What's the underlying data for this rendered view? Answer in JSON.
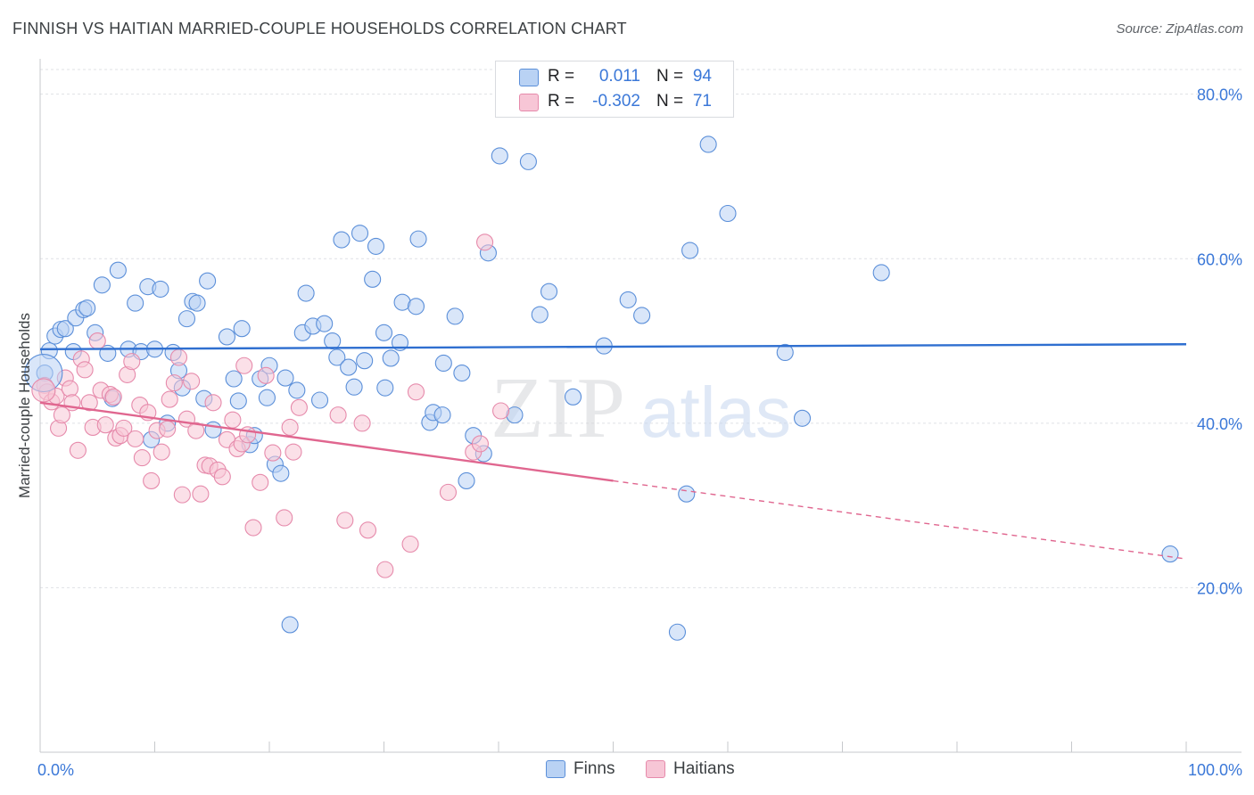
{
  "chart_data": {
    "type": "scatter",
    "title": "FINNISH VS HAITIAN MARRIED-COUPLE HOUSEHOLDS CORRELATION CHART",
    "source": "Source: ZipAtlas.com",
    "xlabel": "",
    "ylabel": "Married-couple Households",
    "xlim": [
      0,
      100
    ],
    "ylim": [
      0,
      83
    ],
    "x_tick_labels": [
      "0.0%",
      "100.0%"
    ],
    "y_ticks": [
      {
        "value": 20,
        "label": "20.0%"
      },
      {
        "value": 40,
        "label": "40.0%"
      },
      {
        "value": 60,
        "label": "60.0%"
      },
      {
        "value": 80,
        "label": "80.0%"
      }
    ],
    "watermark": "ZIPatlas",
    "legend": {
      "position": "top-center",
      "rows": [
        {
          "r_label": "R =",
          "r_value": "0.011",
          "n_label": "N =",
          "n_value": "94"
        },
        {
          "r_label": "R =",
          "r_value": "-0.302",
          "n_label": "N =",
          "n_value": "71"
        }
      ]
    },
    "series": [
      {
        "name": "Finns",
        "color": "#5b8fd9",
        "fill": "#b9d2f4",
        "trend": {
          "x0": 0,
          "y0": 49.0,
          "x1": 100,
          "y1": 49.6,
          "style": "solid",
          "color": "#2f6fd0"
        },
        "points": [
          [
            0.4,
            46.1
          ],
          [
            0.8,
            48.8
          ],
          [
            1.3,
            50.6
          ],
          [
            1.8,
            51.4
          ],
          [
            2.2,
            51.5
          ],
          [
            2.9,
            48.7
          ],
          [
            3.1,
            52.8
          ],
          [
            3.8,
            53.8
          ],
          [
            4.1,
            54.0
          ],
          [
            4.8,
            51.0
          ],
          [
            5.4,
            56.8
          ],
          [
            5.9,
            48.5
          ],
          [
            6.3,
            43.0
          ],
          [
            6.8,
            58.6
          ],
          [
            7.7,
            49.0
          ],
          [
            8.3,
            54.6
          ],
          [
            8.8,
            48.7
          ],
          [
            9.4,
            56.6
          ],
          [
            9.7,
            38.0
          ],
          [
            10.5,
            56.3
          ],
          [
            11.1,
            40.0
          ],
          [
            11.6,
            48.6
          ],
          [
            12.1,
            46.4
          ],
          [
            12.4,
            44.3
          ],
          [
            12.8,
            52.7
          ],
          [
            13.3,
            54.8
          ],
          [
            13.7,
            54.6
          ],
          [
            14.3,
            43.0
          ],
          [
            14.6,
            57.3
          ],
          [
            15.1,
            39.2
          ],
          [
            16.3,
            50.5
          ],
          [
            16.9,
            45.4
          ],
          [
            17.3,
            42.7
          ],
          [
            17.6,
            51.5
          ],
          [
            18.3,
            37.4
          ],
          [
            18.7,
            38.5
          ],
          [
            19.2,
            45.4
          ],
          [
            19.8,
            43.1
          ],
          [
            20.5,
            35.0
          ],
          [
            21.0,
            33.9
          ],
          [
            21.4,
            45.5
          ],
          [
            21.8,
            15.5
          ],
          [
            22.4,
            44.0
          ],
          [
            22.9,
            51.0
          ],
          [
            23.2,
            55.8
          ],
          [
            23.8,
            51.8
          ],
          [
            24.4,
            42.8
          ],
          [
            24.8,
            52.1
          ],
          [
            25.5,
            50.0
          ],
          [
            25.9,
            48.0
          ],
          [
            26.3,
            62.3
          ],
          [
            26.9,
            46.8
          ],
          [
            27.4,
            44.4
          ],
          [
            27.9,
            63.1
          ],
          [
            28.3,
            47.6
          ],
          [
            29.0,
            57.5
          ],
          [
            29.3,
            61.5
          ],
          [
            30.1,
            44.3
          ],
          [
            30.6,
            47.9
          ],
          [
            31.4,
            49.8
          ],
          [
            31.6,
            54.7
          ],
          [
            32.8,
            54.2
          ],
          [
            33.0,
            62.4
          ],
          [
            34.0,
            40.1
          ],
          [
            34.3,
            41.3
          ],
          [
            35.1,
            41.0
          ],
          [
            35.2,
            47.3
          ],
          [
            36.2,
            53.0
          ],
          [
            36.8,
            46.1
          ],
          [
            37.2,
            33.0
          ],
          [
            37.8,
            38.5
          ],
          [
            38.7,
            36.3
          ],
          [
            39.1,
            60.7
          ],
          [
            40.1,
            72.5
          ],
          [
            41.4,
            41.0
          ],
          [
            42.6,
            71.8
          ],
          [
            43.6,
            53.2
          ],
          [
            44.4,
            56.0
          ],
          [
            46.5,
            43.2
          ],
          [
            49.2,
            49.4
          ],
          [
            51.3,
            55.0
          ],
          [
            52.5,
            53.1
          ],
          [
            55.6,
            14.6
          ],
          [
            56.4,
            31.4
          ],
          [
            56.7,
            61.0
          ],
          [
            58.3,
            73.9
          ],
          [
            60.0,
            65.5
          ],
          [
            65.0,
            48.6
          ],
          [
            66.5,
            40.6
          ],
          [
            73.4,
            58.3
          ],
          [
            98.6,
            24.1
          ],
          [
            10.0,
            49.0
          ],
          [
            20.0,
            47.0
          ],
          [
            30.0,
            51.0
          ]
        ]
      },
      {
        "name": "Haitians",
        "color": "#e68aab",
        "fill": "#f7c6d6",
        "trend": {
          "x0": 0,
          "y0": 42.5,
          "x1": 50,
          "y1": 33.0,
          "x_dash_end": 100,
          "y_dash_end": 23.5,
          "style": "solid-then-dashed",
          "color": "#e0668f"
        },
        "points": [
          [
            0.4,
            44.6
          ],
          [
            0.6,
            43.8
          ],
          [
            1.0,
            42.6
          ],
          [
            1.4,
            43.3
          ],
          [
            1.6,
            39.4
          ],
          [
            1.9,
            41.0
          ],
          [
            2.2,
            45.5
          ],
          [
            2.6,
            44.2
          ],
          [
            2.8,
            42.5
          ],
          [
            3.3,
            36.7
          ],
          [
            3.6,
            47.8
          ],
          [
            3.9,
            46.5
          ],
          [
            4.3,
            42.5
          ],
          [
            4.6,
            39.5
          ],
          [
            5.0,
            50.0
          ],
          [
            5.3,
            44.0
          ],
          [
            5.7,
            39.8
          ],
          [
            6.1,
            43.5
          ],
          [
            6.4,
            43.2
          ],
          [
            6.6,
            38.2
          ],
          [
            7.0,
            38.5
          ],
          [
            7.3,
            39.4
          ],
          [
            7.6,
            45.9
          ],
          [
            8.0,
            47.5
          ],
          [
            8.3,
            38.1
          ],
          [
            8.7,
            42.2
          ],
          [
            8.9,
            35.8
          ],
          [
            9.4,
            41.3
          ],
          [
            9.7,
            33.0
          ],
          [
            10.2,
            39.1
          ],
          [
            10.6,
            36.5
          ],
          [
            11.1,
            39.3
          ],
          [
            11.3,
            42.9
          ],
          [
            11.7,
            44.9
          ],
          [
            12.1,
            48.0
          ],
          [
            12.4,
            31.3
          ],
          [
            12.8,
            40.5
          ],
          [
            13.2,
            45.1
          ],
          [
            13.6,
            39.1
          ],
          [
            14.0,
            31.4
          ],
          [
            14.4,
            34.9
          ],
          [
            14.8,
            34.8
          ],
          [
            15.1,
            42.5
          ],
          [
            15.5,
            34.3
          ],
          [
            15.9,
            33.5
          ],
          [
            16.3,
            38.0
          ],
          [
            16.8,
            40.4
          ],
          [
            17.2,
            36.9
          ],
          [
            17.6,
            37.5
          ],
          [
            17.8,
            47.0
          ],
          [
            18.1,
            38.6
          ],
          [
            18.6,
            27.3
          ],
          [
            19.2,
            32.8
          ],
          [
            19.7,
            45.8
          ],
          [
            20.3,
            36.4
          ],
          [
            21.3,
            28.5
          ],
          [
            21.8,
            39.5
          ],
          [
            22.1,
            36.5
          ],
          [
            22.6,
            41.9
          ],
          [
            26.0,
            41.0
          ],
          [
            26.6,
            28.2
          ],
          [
            28.1,
            40.0
          ],
          [
            28.6,
            27.0
          ],
          [
            30.1,
            22.2
          ],
          [
            32.3,
            25.3
          ],
          [
            32.8,
            43.8
          ],
          [
            35.6,
            31.6
          ],
          [
            37.8,
            36.5
          ],
          [
            38.4,
            37.5
          ],
          [
            38.8,
            62.0
          ],
          [
            40.2,
            41.5
          ]
        ]
      }
    ]
  }
}
